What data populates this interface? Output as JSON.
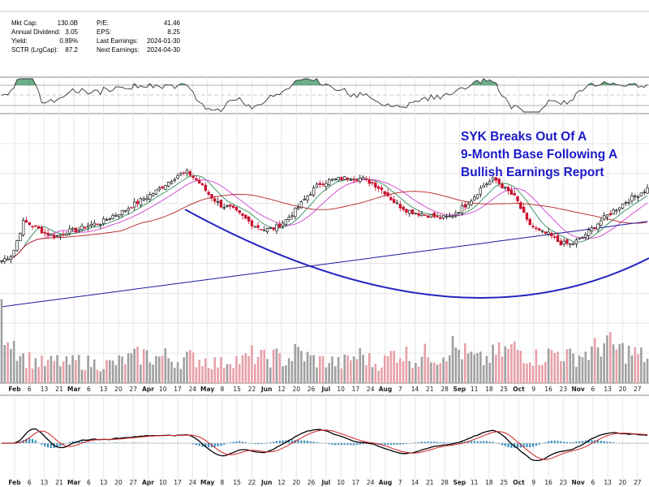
{
  "stats": {
    "left": [
      {
        "label": "Mkt Cap:",
        "value": "130.0B"
      },
      {
        "label": "Annual Dividend:",
        "value": "3.05"
      },
      {
        "label": "Yield:",
        "value": "0.89%"
      },
      {
        "label": "SCTR (LrgCap):",
        "value": "87.2"
      }
    ],
    "right": [
      {
        "label": "P/E:",
        "value": "41.46"
      },
      {
        "label": "EPS:",
        "value": "8.25"
      },
      {
        "label": "Last Earnings:",
        "value": "2024-01-30"
      },
      {
        "label": "Next Earnings:",
        "value": "2024-04-30"
      }
    ]
  },
  "annotation": {
    "lines": [
      "SYK Breaks Out Of A",
      "9-Month Base Following A",
      "Bullish Earnings Report"
    ],
    "color": "#1a1ac8"
  },
  "colors": {
    "up": "#000000",
    "down": "#c8102e",
    "ma_short": "#2e8b57",
    "ma_mid": "#d03fd0",
    "ma_long": "#b22222",
    "ma_200": "#1c1c9c",
    "base_arc": "#2323c0",
    "volume_up": "#a0a0a0",
    "volume_down": "#e8a0a8",
    "macd_line": "#000000",
    "signal_line": "#d02020",
    "histogram": "#3a8fc0",
    "rsi_overbought_fill": "#2e8b57"
  },
  "chart_data": {
    "type": "candlestick",
    "x_tick_labels": [
      "Feb",
      "6",
      "13",
      "21",
      "Mar",
      "6",
      "13",
      "20",
      "27",
      "Apr",
      "10",
      "17",
      "24",
      "May",
      "8",
      "15",
      "22",
      "Jun",
      "12",
      "20",
      "26",
      "Jul",
      "10",
      "17",
      "24",
      "Aug",
      "7",
      "14",
      "21",
      "28",
      "Sep",
      "11",
      "18",
      "25",
      "Oct",
      "9",
      "16",
      "23",
      "Nov",
      "6",
      "13",
      "20",
      "27"
    ],
    "price_series_relative": [
      0.3,
      0.34,
      0.54,
      0.51,
      0.47,
      0.45,
      0.48,
      0.49,
      0.52,
      0.53,
      0.57,
      0.6,
      0.64,
      0.68,
      0.72,
      0.77,
      0.82,
      0.84,
      0.78,
      0.7,
      0.64,
      0.62,
      0.57,
      0.52,
      0.49,
      0.5,
      0.55,
      0.62,
      0.7,
      0.77,
      0.79,
      0.8,
      0.81,
      0.8,
      0.77,
      0.72,
      0.65,
      0.61,
      0.59,
      0.58,
      0.56,
      0.57,
      0.62,
      0.68,
      0.76,
      0.8,
      0.74,
      0.68,
      0.54,
      0.48,
      0.46,
      0.41,
      0.4,
      0.44,
      0.5,
      0.56,
      0.61,
      0.66,
      0.7,
      0.74
    ],
    "volume_relative": [
      1.0,
      0.7,
      0.4,
      0.35,
      0.3,
      0.35,
      0.3,
      0.35,
      0.32,
      0.3,
      0.3,
      0.35,
      0.4,
      0.45,
      0.4,
      0.42,
      0.35,
      0.4,
      0.38,
      0.35,
      0.3,
      0.4,
      0.35,
      0.45,
      0.38,
      0.42,
      0.35,
      0.5,
      0.4,
      0.35,
      0.35,
      0.3,
      0.4,
      0.45,
      0.3,
      0.35,
      0.5,
      0.45,
      0.35,
      0.5,
      0.4,
      0.6,
      0.5,
      0.4,
      0.35,
      0.45,
      0.5,
      0.55,
      0.45,
      0.4,
      0.45,
      0.5,
      0.4,
      0.45,
      0.5,
      0.65,
      0.55,
      0.5,
      0.45,
      0.4
    ],
    "panels": [
      "RSI",
      "Price with moving averages",
      "Volume",
      "MACD"
    ],
    "grid": true
  }
}
